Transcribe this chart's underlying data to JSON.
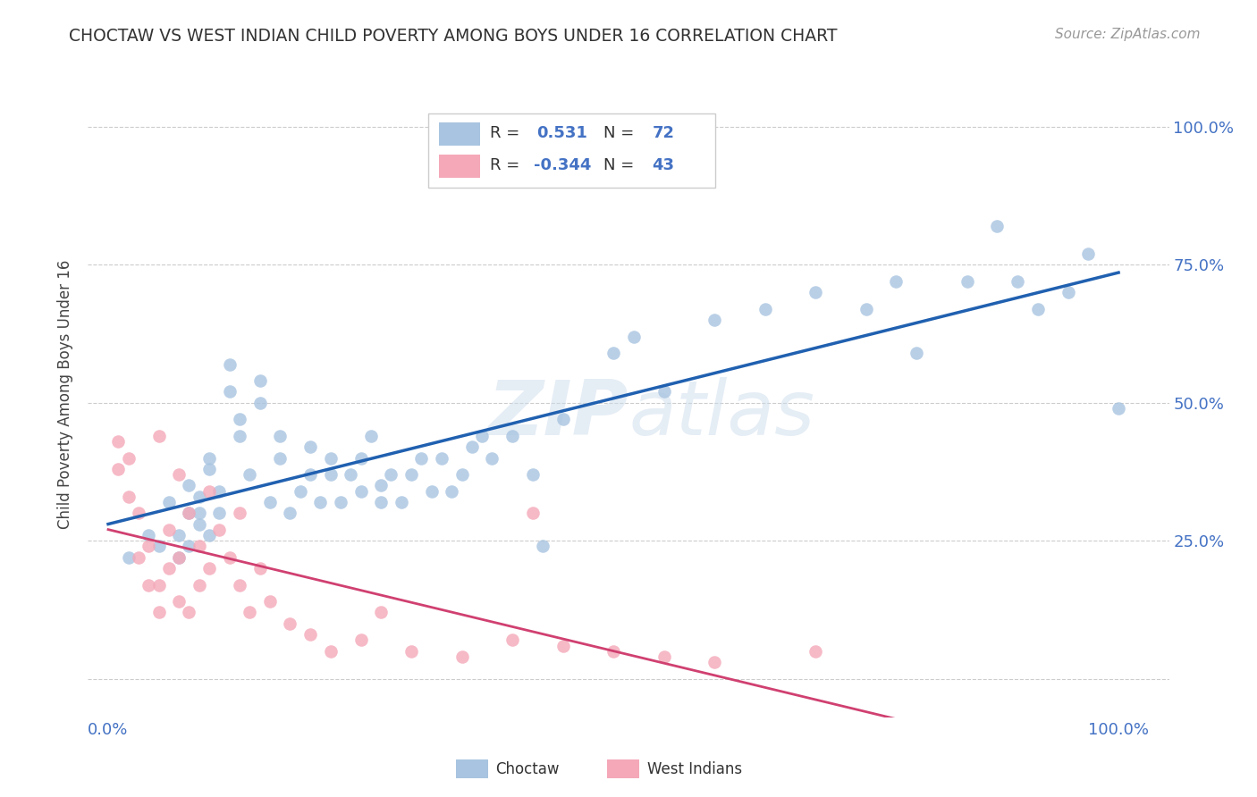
{
  "title": "CHOCTAW VS WEST INDIAN CHILD POVERTY AMONG BOYS UNDER 16 CORRELATION CHART",
  "source": "Source: ZipAtlas.com",
  "ylabel": "Child Poverty Among Boys Under 16",
  "xlim": [
    -0.02,
    1.05
  ],
  "ylim": [
    -0.07,
    1.1
  ],
  "choctaw_R": 0.531,
  "choctaw_N": 72,
  "west_indian_R": -0.344,
  "west_indian_N": 43,
  "choctaw_color": "#a8c4e0",
  "west_indian_color": "#f4a8b8",
  "choctaw_line_color": "#2060b0",
  "west_indian_line_color": "#d04070",
  "text_color": "#4472c4",
  "watermark": "ZIPAtlas",
  "background_color": "#ffffff",
  "choctaw_x": [
    0.02,
    0.04,
    0.05,
    0.06,
    0.07,
    0.07,
    0.08,
    0.08,
    0.08,
    0.09,
    0.09,
    0.09,
    0.1,
    0.1,
    0.1,
    0.11,
    0.11,
    0.12,
    0.12,
    0.13,
    0.13,
    0.14,
    0.15,
    0.15,
    0.16,
    0.17,
    0.17,
    0.18,
    0.19,
    0.2,
    0.2,
    0.21,
    0.22,
    0.22,
    0.23,
    0.24,
    0.25,
    0.26,
    0.27,
    0.27,
    0.28,
    0.29,
    0.3,
    0.31,
    0.32,
    0.33,
    0.34,
    0.35,
    0.36,
    0.37,
    0.38,
    0.4,
    0.42,
    0.43,
    0.45,
    0.5,
    0.52,
    0.55,
    0.6,
    0.65,
    0.7,
    0.75,
    0.78,
    0.8,
    0.85,
    0.88,
    0.9,
    0.92,
    0.95,
    0.97,
    1.0,
    0.25
  ],
  "choctaw_y": [
    0.22,
    0.26,
    0.24,
    0.32,
    0.22,
    0.26,
    0.24,
    0.3,
    0.35,
    0.28,
    0.3,
    0.33,
    0.26,
    0.38,
    0.4,
    0.3,
    0.34,
    0.52,
    0.57,
    0.44,
    0.47,
    0.37,
    0.5,
    0.54,
    0.32,
    0.4,
    0.44,
    0.3,
    0.34,
    0.37,
    0.42,
    0.32,
    0.37,
    0.4,
    0.32,
    0.37,
    0.4,
    0.44,
    0.32,
    0.35,
    0.37,
    0.32,
    0.37,
    0.4,
    0.34,
    0.4,
    0.34,
    0.37,
    0.42,
    0.44,
    0.4,
    0.44,
    0.37,
    0.24,
    0.47,
    0.59,
    0.62,
    0.52,
    0.65,
    0.67,
    0.7,
    0.67,
    0.72,
    0.59,
    0.72,
    0.82,
    0.72,
    0.67,
    0.7,
    0.77,
    0.49,
    0.34
  ],
  "west_indian_x": [
    0.01,
    0.01,
    0.02,
    0.02,
    0.03,
    0.03,
    0.04,
    0.04,
    0.05,
    0.05,
    0.05,
    0.06,
    0.06,
    0.07,
    0.07,
    0.07,
    0.08,
    0.08,
    0.09,
    0.09,
    0.1,
    0.1,
    0.11,
    0.12,
    0.13,
    0.13,
    0.14,
    0.15,
    0.16,
    0.18,
    0.2,
    0.22,
    0.25,
    0.27,
    0.3,
    0.35,
    0.4,
    0.42,
    0.45,
    0.5,
    0.55,
    0.6,
    0.7
  ],
  "west_indian_y": [
    0.38,
    0.43,
    0.33,
    0.4,
    0.22,
    0.3,
    0.17,
    0.24,
    0.12,
    0.17,
    0.44,
    0.2,
    0.27,
    0.14,
    0.22,
    0.37,
    0.12,
    0.3,
    0.17,
    0.24,
    0.2,
    0.34,
    0.27,
    0.22,
    0.17,
    0.3,
    0.12,
    0.2,
    0.14,
    0.1,
    0.08,
    0.05,
    0.07,
    0.12,
    0.05,
    0.04,
    0.07,
    0.3,
    0.06,
    0.05,
    0.04,
    0.03,
    0.05
  ]
}
